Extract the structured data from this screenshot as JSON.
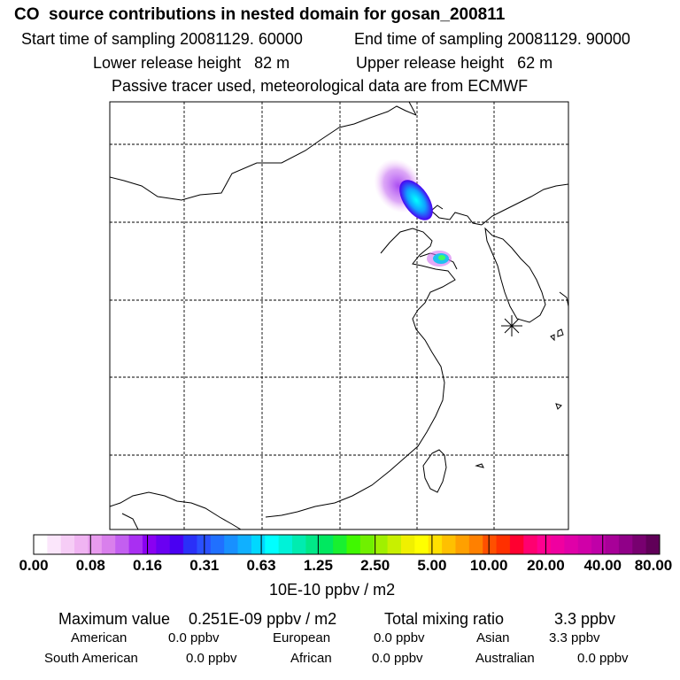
{
  "title": "CO  source contributions in nested domain for gosan_200811",
  "sampling": {
    "start": "Start time of sampling 20081129. 60000",
    "end": "End time of sampling 20081129. 90000"
  },
  "release": {
    "lower": "Lower release height   82 m",
    "upper": "Upper release height   62 m"
  },
  "note": "Passive tracer used, meteorological data are from ECMWF",
  "colorbar": {
    "ticks": [
      "0.00",
      "0.08",
      "0.16",
      "0.31",
      "0.63",
      "1.25",
      "2.50",
      "5.00",
      "10.00",
      "20.00",
      "40.00",
      "80.00"
    ],
    "unit": "10E-10 ppbv / m2",
    "colors": [
      "#ffffff",
      "#fbe6fb",
      "#f6cdf6",
      "#f0b4f2",
      "#e89bee",
      "#d97fec",
      "#c35ff0",
      "#a92ff2",
      "#8a00f2",
      "#6a00f2",
      "#4a00f2",
      "#2a30f8",
      "#2a50ff",
      "#2070ff",
      "#1890ff",
      "#10b0ff",
      "#00d8ff",
      "#00ffff",
      "#00f2d8",
      "#00ecb0",
      "#00e888",
      "#00e860",
      "#18f030",
      "#40f800",
      "#70f000",
      "#a0f000",
      "#c8f000",
      "#f0f000",
      "#ffff00",
      "#ffe000",
      "#ffc000",
      "#ffa000",
      "#ff8000",
      "#ff5000",
      "#ff3000",
      "#ff0030",
      "#ff0070",
      "#ff0090",
      "#f000a0",
      "#e000a8",
      "#d000a8",
      "#c000a8",
      "#a80098",
      "#900088",
      "#780070",
      "#600058"
    ],
    "marker": "✳"
  },
  "stats": {
    "max_label": "Maximum value",
    "max_value": "0.251E-09 ppbv / m2",
    "total_label": "Total mixing ratio",
    "total_value": "3.3 ppbv",
    "regions": [
      {
        "name": "American",
        "value": "0.0 ppbv"
      },
      {
        "name": "European",
        "value": "0.0 ppbv"
      },
      {
        "name": "Asian",
        "value": "3.3 ppbv"
      },
      {
        "name": "South American",
        "value": "0.0 ppbv"
      },
      {
        "name": "African",
        "value": "0.0 ppbv"
      },
      {
        "name": "Australian",
        "value": "0.0 ppbv"
      }
    ]
  }
}
